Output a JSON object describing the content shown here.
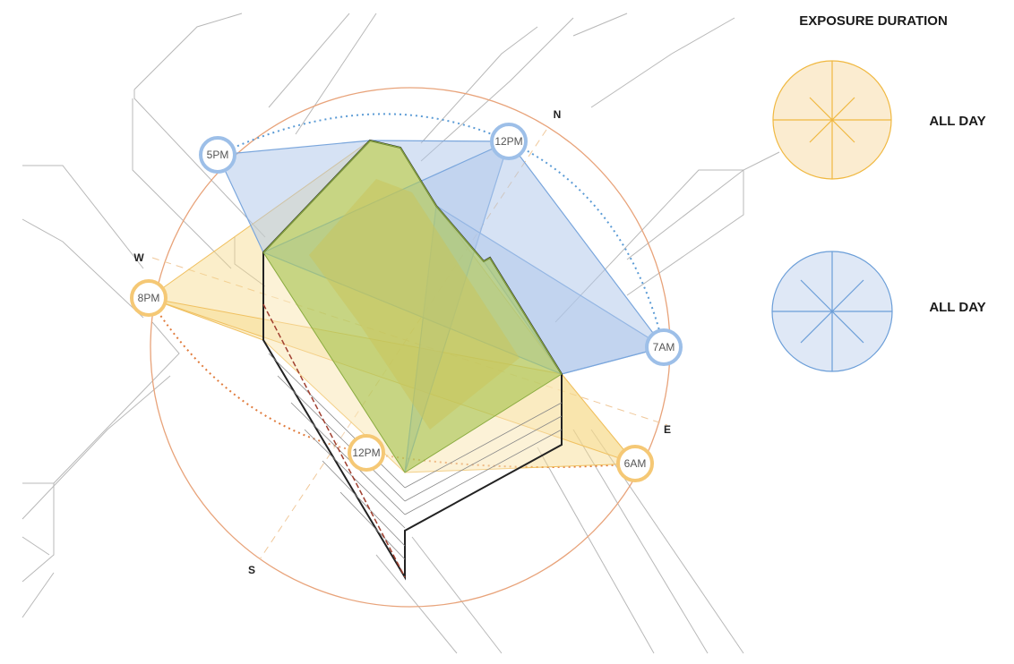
{
  "legend": {
    "title": "EXPOSURE DURATION",
    "items": [
      {
        "label": "ALL DAY"
      },
      {
        "label": "ALL DAY"
      }
    ]
  },
  "compass": {
    "n": "N",
    "w": "W",
    "e": "E",
    "s": "S"
  },
  "blue_path": {
    "times": [
      "5PM",
      "12PM",
      "7AM"
    ]
  },
  "orange_path": {
    "times": [
      "8PM",
      "12PM",
      "6AM"
    ]
  }
}
